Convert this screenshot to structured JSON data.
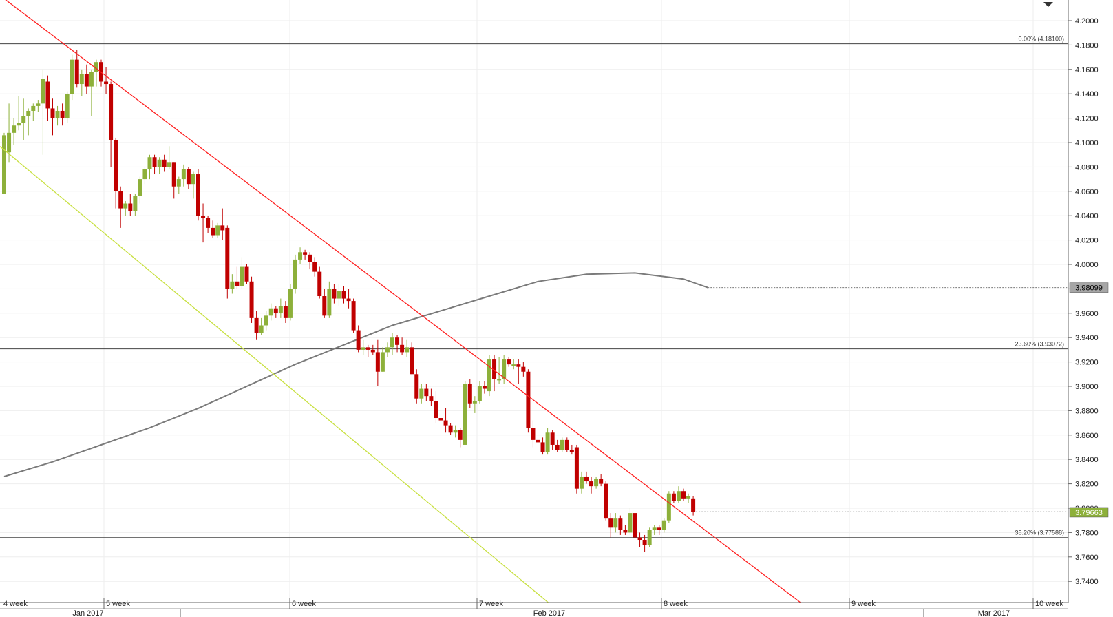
{
  "chart_data": {
    "type": "candlestick",
    "title": "",
    "xlabel": "",
    "ylabel": "",
    "ylim": [
      3.72,
      4.22
    ],
    "y_ticks": [
      "4.2000",
      "4.1800",
      "4.1600",
      "4.1400",
      "4.1200",
      "4.1000",
      "4.0800",
      "4.0600",
      "4.0400",
      "4.0200",
      "4.0000",
      "3.9800",
      "3.9600",
      "3.9400",
      "3.9200",
      "3.9000",
      "3.8800",
      "3.8600",
      "3.8400",
      "3.8200",
      "3.8000",
      "3.7800",
      "3.7600",
      "3.7400"
    ],
    "x_week_labels": [
      "4 week",
      "5 week",
      "6 week",
      "7 week",
      "8 week",
      "9 week",
      "10 week"
    ],
    "x_month_labels": [
      "Jan 2017",
      "Feb 2017",
      "Mar 2017"
    ],
    "grid": true,
    "colors": {
      "up": "#8db03a",
      "down": "#c00000",
      "resistance": "#ff2020",
      "support": "#c8e040",
      "ma": "#7a7a7a",
      "fib": "#444444"
    },
    "candles": [
      {
        "o": 4.058,
        "h": 4.108,
        "l": 4.058,
        "c": 4.106
      },
      {
        "o": 4.092,
        "h": 4.132,
        "l": 4.084,
        "c": 4.108
      },
      {
        "o": 4.108,
        "h": 4.12,
        "l": 4.098,
        "c": 4.114
      },
      {
        "o": 4.114,
        "h": 4.138,
        "l": 4.11,
        "c": 4.116
      },
      {
        "o": 4.116,
        "h": 4.136,
        "l": 4.102,
        "c": 4.122
      },
      {
        "o": 4.122,
        "h": 4.128,
        "l": 4.106,
        "c": 4.126
      },
      {
        "o": 4.126,
        "h": 4.132,
        "l": 4.118,
        "c": 4.13
      },
      {
        "o": 4.13,
        "h": 4.135,
        "l": 4.125,
        "c": 4.132
      },
      {
        "o": 4.132,
        "h": 4.16,
        "l": 4.09,
        "c": 4.152
      },
      {
        "o": 4.15,
        "h": 4.155,
        "l": 4.118,
        "c": 4.128
      },
      {
        "o": 4.128,
        "h": 4.136,
        "l": 4.106,
        "c": 4.12
      },
      {
        "o": 4.12,
        "h": 4.13,
        "l": 4.114,
        "c": 4.126
      },
      {
        "o": 4.126,
        "h": 4.132,
        "l": 4.114,
        "c": 4.12
      },
      {
        "o": 4.12,
        "h": 4.142,
        "l": 4.116,
        "c": 4.14
      },
      {
        "o": 4.14,
        "h": 4.172,
        "l": 4.135,
        "c": 4.168
      },
      {
        "o": 4.168,
        "h": 4.176,
        "l": 4.145,
        "c": 4.148
      },
      {
        "o": 4.148,
        "h": 4.16,
        "l": 4.138,
        "c": 4.156
      },
      {
        "o": 4.156,
        "h": 4.164,
        "l": 4.14,
        "c": 4.146
      },
      {
        "o": 4.146,
        "h": 4.16,
        "l": 4.122,
        "c": 4.158
      },
      {
        "o": 4.158,
        "h": 4.168,
        "l": 4.146,
        "c": 4.166
      },
      {
        "o": 4.166,
        "h": 4.168,
        "l": 4.146,
        "c": 4.15
      },
      {
        "o": 4.15,
        "h": 4.162,
        "l": 4.14,
        "c": 4.148
      },
      {
        "o": 4.148,
        "h": 4.15,
        "l": 4.08,
        "c": 4.102
      },
      {
        "o": 4.102,
        "h": 4.104,
        "l": 4.046,
        "c": 4.06
      },
      {
        "o": 4.06,
        "h": 4.064,
        "l": 4.03,
        "c": 4.046
      },
      {
        "o": 4.046,
        "h": 4.052,
        "l": 4.04,
        "c": 4.05
      },
      {
        "o": 4.05,
        "h": 4.058,
        "l": 4.04,
        "c": 4.044
      },
      {
        "o": 4.044,
        "h": 4.058,
        "l": 4.04,
        "c": 4.056
      },
      {
        "o": 4.056,
        "h": 4.072,
        "l": 4.05,
        "c": 4.07
      },
      {
        "o": 4.07,
        "h": 4.08,
        "l": 4.066,
        "c": 4.078
      },
      {
        "o": 4.078,
        "h": 4.09,
        "l": 4.07,
        "c": 4.088
      },
      {
        "o": 4.088,
        "h": 4.09,
        "l": 4.074,
        "c": 4.08
      },
      {
        "o": 4.08,
        "h": 4.088,
        "l": 4.074,
        "c": 4.086
      },
      {
        "o": 4.086,
        "h": 4.09,
        "l": 4.076,
        "c": 4.08
      },
      {
        "o": 4.08,
        "h": 4.097,
        "l": 4.078,
        "c": 4.084
      },
      {
        "o": 4.084,
        "h": 4.084,
        "l": 4.054,
        "c": 4.064
      },
      {
        "o": 4.064,
        "h": 4.072,
        "l": 4.058,
        "c": 4.07
      },
      {
        "o": 4.07,
        "h": 4.082,
        "l": 4.064,
        "c": 4.078
      },
      {
        "o": 4.078,
        "h": 4.08,
        "l": 4.062,
        "c": 4.066
      },
      {
        "o": 4.066,
        "h": 4.076,
        "l": 4.054,
        "c": 4.074
      },
      {
        "o": 4.074,
        "h": 4.078,
        "l": 4.036,
        "c": 4.04
      },
      {
        "o": 4.04,
        "h": 4.05,
        "l": 4.018,
        "c": 4.038
      },
      {
        "o": 4.038,
        "h": 4.04,
        "l": 4.026,
        "c": 4.03
      },
      {
        "o": 4.03,
        "h": 4.036,
        "l": 4.022,
        "c": 4.024
      },
      {
        "o": 4.024,
        "h": 4.034,
        "l": 4.022,
        "c": 4.032
      },
      {
        "o": 4.032,
        "h": 4.046,
        "l": 4.02,
        "c": 4.028
      },
      {
        "o": 4.03,
        "h": 4.032,
        "l": 3.972,
        "c": 3.98
      },
      {
        "o": 3.98,
        "h": 3.992,
        "l": 3.976,
        "c": 3.986
      },
      {
        "o": 3.986,
        "h": 3.998,
        "l": 3.98,
        "c": 3.982
      },
      {
        "o": 3.982,
        "h": 4.006,
        "l": 3.98,
        "c": 3.998
      },
      {
        "o": 3.998,
        "h": 4.0,
        "l": 3.984,
        "c": 3.986
      },
      {
        "o": 3.986,
        "h": 3.99,
        "l": 3.952,
        "c": 3.956
      },
      {
        "o": 3.956,
        "h": 3.962,
        "l": 3.938,
        "c": 3.944
      },
      {
        "o": 3.944,
        "h": 3.956,
        "l": 3.942,
        "c": 3.95
      },
      {
        "o": 3.95,
        "h": 3.962,
        "l": 3.946,
        "c": 3.958
      },
      {
        "o": 3.958,
        "h": 3.968,
        "l": 3.954,
        "c": 3.964
      },
      {
        "o": 3.964,
        "h": 3.966,
        "l": 3.956,
        "c": 3.96
      },
      {
        "o": 3.96,
        "h": 3.972,
        "l": 3.956,
        "c": 3.966
      },
      {
        "o": 3.966,
        "h": 3.97,
        "l": 3.952,
        "c": 3.956
      },
      {
        "o": 3.956,
        "h": 3.984,
        "l": 3.954,
        "c": 3.98
      },
      {
        "o": 3.98,
        "h": 4.008,
        "l": 3.976,
        "c": 4.004
      },
      {
        "o": 4.004,
        "h": 4.014,
        "l": 4.0,
        "c": 4.01
      },
      {
        "o": 4.01,
        "h": 4.012,
        "l": 4.004,
        "c": 4.008
      },
      {
        "o": 4.008,
        "h": 4.01,
        "l": 3.996,
        "c": 4.002
      },
      {
        "o": 4.002,
        "h": 4.006,
        "l": 3.99,
        "c": 3.994
      },
      {
        "o": 3.994,
        "h": 3.998,
        "l": 3.972,
        "c": 3.974
      },
      {
        "o": 3.974,
        "h": 3.98,
        "l": 3.956,
        "c": 3.958
      },
      {
        "o": 3.958,
        "h": 3.986,
        "l": 3.956,
        "c": 3.98
      },
      {
        "o": 3.98,
        "h": 3.984,
        "l": 3.968,
        "c": 3.972
      },
      {
        "o": 3.972,
        "h": 3.984,
        "l": 3.966,
        "c": 3.978
      },
      {
        "o": 3.978,
        "h": 3.982,
        "l": 3.968,
        "c": 3.972
      },
      {
        "o": 3.972,
        "h": 3.98,
        "l": 3.964,
        "c": 3.97
      },
      {
        "o": 3.97,
        "h": 3.972,
        "l": 3.944,
        "c": 3.946
      },
      {
        "o": 3.946,
        "h": 3.95,
        "l": 3.928,
        "c": 3.93
      },
      {
        "o": 3.93,
        "h": 3.938,
        "l": 3.926,
        "c": 3.932
      },
      {
        "o": 3.932,
        "h": 3.934,
        "l": 3.924,
        "c": 3.93
      },
      {
        "o": 3.93,
        "h": 3.934,
        "l": 3.926,
        "c": 3.928
      },
      {
        "o": 3.928,
        "h": 3.938,
        "l": 3.9,
        "c": 3.912
      },
      {
        "o": 3.912,
        "h": 3.932,
        "l": 3.912,
        "c": 3.928
      },
      {
        "o": 3.928,
        "h": 3.936,
        "l": 3.924,
        "c": 3.932
      },
      {
        "o": 3.932,
        "h": 3.944,
        "l": 3.926,
        "c": 3.94
      },
      {
        "o": 3.94,
        "h": 3.942,
        "l": 3.928,
        "c": 3.934
      },
      {
        "o": 3.934,
        "h": 3.94,
        "l": 3.926,
        "c": 3.928
      },
      {
        "o": 3.928,
        "h": 3.938,
        "l": 3.924,
        "c": 3.932
      },
      {
        "o": 3.932,
        "h": 3.936,
        "l": 3.91,
        "c": 3.91
      },
      {
        "o": 3.91,
        "h": 3.914,
        "l": 3.886,
        "c": 3.89
      },
      {
        "o": 3.89,
        "h": 3.902,
        "l": 3.886,
        "c": 3.898
      },
      {
        "o": 3.898,
        "h": 3.902,
        "l": 3.888,
        "c": 3.892
      },
      {
        "o": 3.892,
        "h": 3.898,
        "l": 3.884,
        "c": 3.888
      },
      {
        "o": 3.888,
        "h": 3.896,
        "l": 3.87,
        "c": 3.874
      },
      {
        "o": 3.874,
        "h": 3.88,
        "l": 3.862,
        "c": 3.872
      },
      {
        "o": 3.872,
        "h": 3.882,
        "l": 3.862,
        "c": 3.868
      },
      {
        "o": 3.868,
        "h": 3.87,
        "l": 3.86,
        "c": 3.862
      },
      {
        "o": 3.862,
        "h": 3.868,
        "l": 3.858,
        "c": 3.864
      },
      {
        "o": 3.864,
        "h": 3.866,
        "l": 3.85,
        "c": 3.856
      },
      {
        "o": 3.852,
        "h": 3.904,
        "l": 3.852,
        "c": 3.902
      },
      {
        "o": 3.902,
        "h": 3.906,
        "l": 3.882,
        "c": 3.886
      },
      {
        "o": 3.886,
        "h": 3.892,
        "l": 3.878,
        "c": 3.888
      },
      {
        "o": 3.888,
        "h": 3.904,
        "l": 3.886,
        "c": 3.9
      },
      {
        "o": 3.9,
        "h": 3.904,
        "l": 3.894,
        "c": 3.898
      },
      {
        "o": 3.896,
        "h": 3.926,
        "l": 3.892,
        "c": 3.922
      },
      {
        "o": 3.922,
        "h": 3.926,
        "l": 3.896,
        "c": 3.906
      },
      {
        "o": 3.906,
        "h": 3.924,
        "l": 3.902,
        "c": 3.906
      },
      {
        "o": 3.906,
        "h": 3.926,
        "l": 3.902,
        "c": 3.922
      },
      {
        "o": 3.922,
        "h": 3.924,
        "l": 3.916,
        "c": 3.918
      },
      {
        "o": 3.918,
        "h": 3.922,
        "l": 3.914,
        "c": 3.918
      },
      {
        "o": 3.918,
        "h": 3.922,
        "l": 3.902,
        "c": 3.916
      },
      {
        "o": 3.916,
        "h": 3.92,
        "l": 3.908,
        "c": 3.912
      },
      {
        "o": 3.912,
        "h": 3.914,
        "l": 3.862,
        "c": 3.866
      },
      {
        "o": 3.866,
        "h": 3.872,
        "l": 3.85,
        "c": 3.856
      },
      {
        "o": 3.856,
        "h": 3.86,
        "l": 3.852,
        "c": 3.854
      },
      {
        "o": 3.854,
        "h": 3.858,
        "l": 3.844,
        "c": 3.846
      },
      {
        "o": 3.846,
        "h": 3.866,
        "l": 3.844,
        "c": 3.862
      },
      {
        "o": 3.862,
        "h": 3.864,
        "l": 3.848,
        "c": 3.852
      },
      {
        "o": 3.852,
        "h": 3.856,
        "l": 3.846,
        "c": 3.848
      },
      {
        "o": 3.848,
        "h": 3.858,
        "l": 3.846,
        "c": 3.856
      },
      {
        "o": 3.856,
        "h": 3.858,
        "l": 3.846,
        "c": 3.848
      },
      {
        "o": 3.848,
        "h": 3.852,
        "l": 3.844,
        "c": 3.846
      },
      {
        "o": 3.85,
        "h": 3.852,
        "l": 3.812,
        "c": 3.816
      },
      {
        "o": 3.816,
        "h": 3.83,
        "l": 3.812,
        "c": 3.826
      },
      {
        "o": 3.826,
        "h": 3.83,
        "l": 3.82,
        "c": 3.822
      },
      {
        "o": 3.822,
        "h": 3.826,
        "l": 3.812,
        "c": 3.818
      },
      {
        "o": 3.818,
        "h": 3.826,
        "l": 3.816,
        "c": 3.824
      },
      {
        "o": 3.824,
        "h": 3.828,
        "l": 3.818,
        "c": 3.82
      },
      {
        "o": 3.82,
        "h": 3.822,
        "l": 3.79,
        "c": 3.792
      },
      {
        "o": 3.792,
        "h": 3.796,
        "l": 3.776,
        "c": 3.784
      },
      {
        "o": 3.784,
        "h": 3.796,
        "l": 3.78,
        "c": 3.792
      },
      {
        "o": 3.792,
        "h": 3.794,
        "l": 3.778,
        "c": 3.782
      },
      {
        "o": 3.782,
        "h": 3.786,
        "l": 3.778,
        "c": 3.78
      },
      {
        "o": 3.78,
        "h": 3.8,
        "l": 3.778,
        "c": 3.796
      },
      {
        "o": 3.796,
        "h": 3.798,
        "l": 3.774,
        "c": 3.776
      },
      {
        "o": 3.776,
        "h": 3.78,
        "l": 3.768,
        "c": 3.774
      },
      {
        "o": 3.774,
        "h": 3.778,
        "l": 3.764,
        "c": 3.77
      },
      {
        "o": 3.77,
        "h": 3.784,
        "l": 3.768,
        "c": 3.782
      },
      {
        "o": 3.782,
        "h": 3.786,
        "l": 3.778,
        "c": 3.784
      },
      {
        "o": 3.784,
        "h": 3.786,
        "l": 3.778,
        "c": 3.782
      },
      {
        "o": 3.782,
        "h": 3.792,
        "l": 3.78,
        "c": 3.79
      },
      {
        "o": 3.79,
        "h": 3.814,
        "l": 3.788,
        "c": 3.812
      },
      {
        "o": 3.812,
        "h": 3.814,
        "l": 3.804,
        "c": 3.806
      },
      {
        "o": 3.806,
        "h": 3.818,
        "l": 3.804,
        "c": 3.814
      },
      {
        "o": 3.814,
        "h": 3.816,
        "l": 3.806,
        "c": 3.808
      },
      {
        "o": 3.808,
        "h": 3.812,
        "l": 3.804,
        "c": 3.81
      },
      {
        "o": 3.808,
        "h": 3.81,
        "l": 3.794,
        "c": 3.797
      }
    ],
    "moving_average": [
      {
        "i": 0,
        "y": 3.826
      },
      {
        "i": 10,
        "y": 3.838
      },
      {
        "i": 20,
        "y": 3.852
      },
      {
        "i": 30,
        "y": 3.866
      },
      {
        "i": 40,
        "y": 3.882
      },
      {
        "i": 50,
        "y": 3.9
      },
      {
        "i": 60,
        "y": 3.918
      },
      {
        "i": 70,
        "y": 3.934
      },
      {
        "i": 80,
        "y": 3.95
      },
      {
        "i": 90,
        "y": 3.962
      },
      {
        "i": 100,
        "y": 3.974
      },
      {
        "i": 110,
        "y": 3.986
      },
      {
        "i": 120,
        "y": 3.992
      },
      {
        "i": 130,
        "y": 3.993
      },
      {
        "i": 140,
        "y": 3.988
      },
      {
        "i": 145,
        "y": 3.981
      }
    ],
    "moving_average_last": "3.98099",
    "last_price": "3.79663",
    "resistance_line": {
      "i1": 0,
      "y1": 4.218,
      "i2": 160,
      "y2": 3.735
    },
    "support_line": {
      "i1": 0,
      "y1": 4.094,
      "i2": 160,
      "y2": 3.564
    },
    "fibonacci": [
      {
        "level": 4.181,
        "label": "0.00% (4.18100)"
      },
      {
        "level": 3.93072,
        "label": "23.60% (3.93072)"
      },
      {
        "level": 3.77588,
        "label": "38.20% (3.77588)"
      }
    ]
  }
}
